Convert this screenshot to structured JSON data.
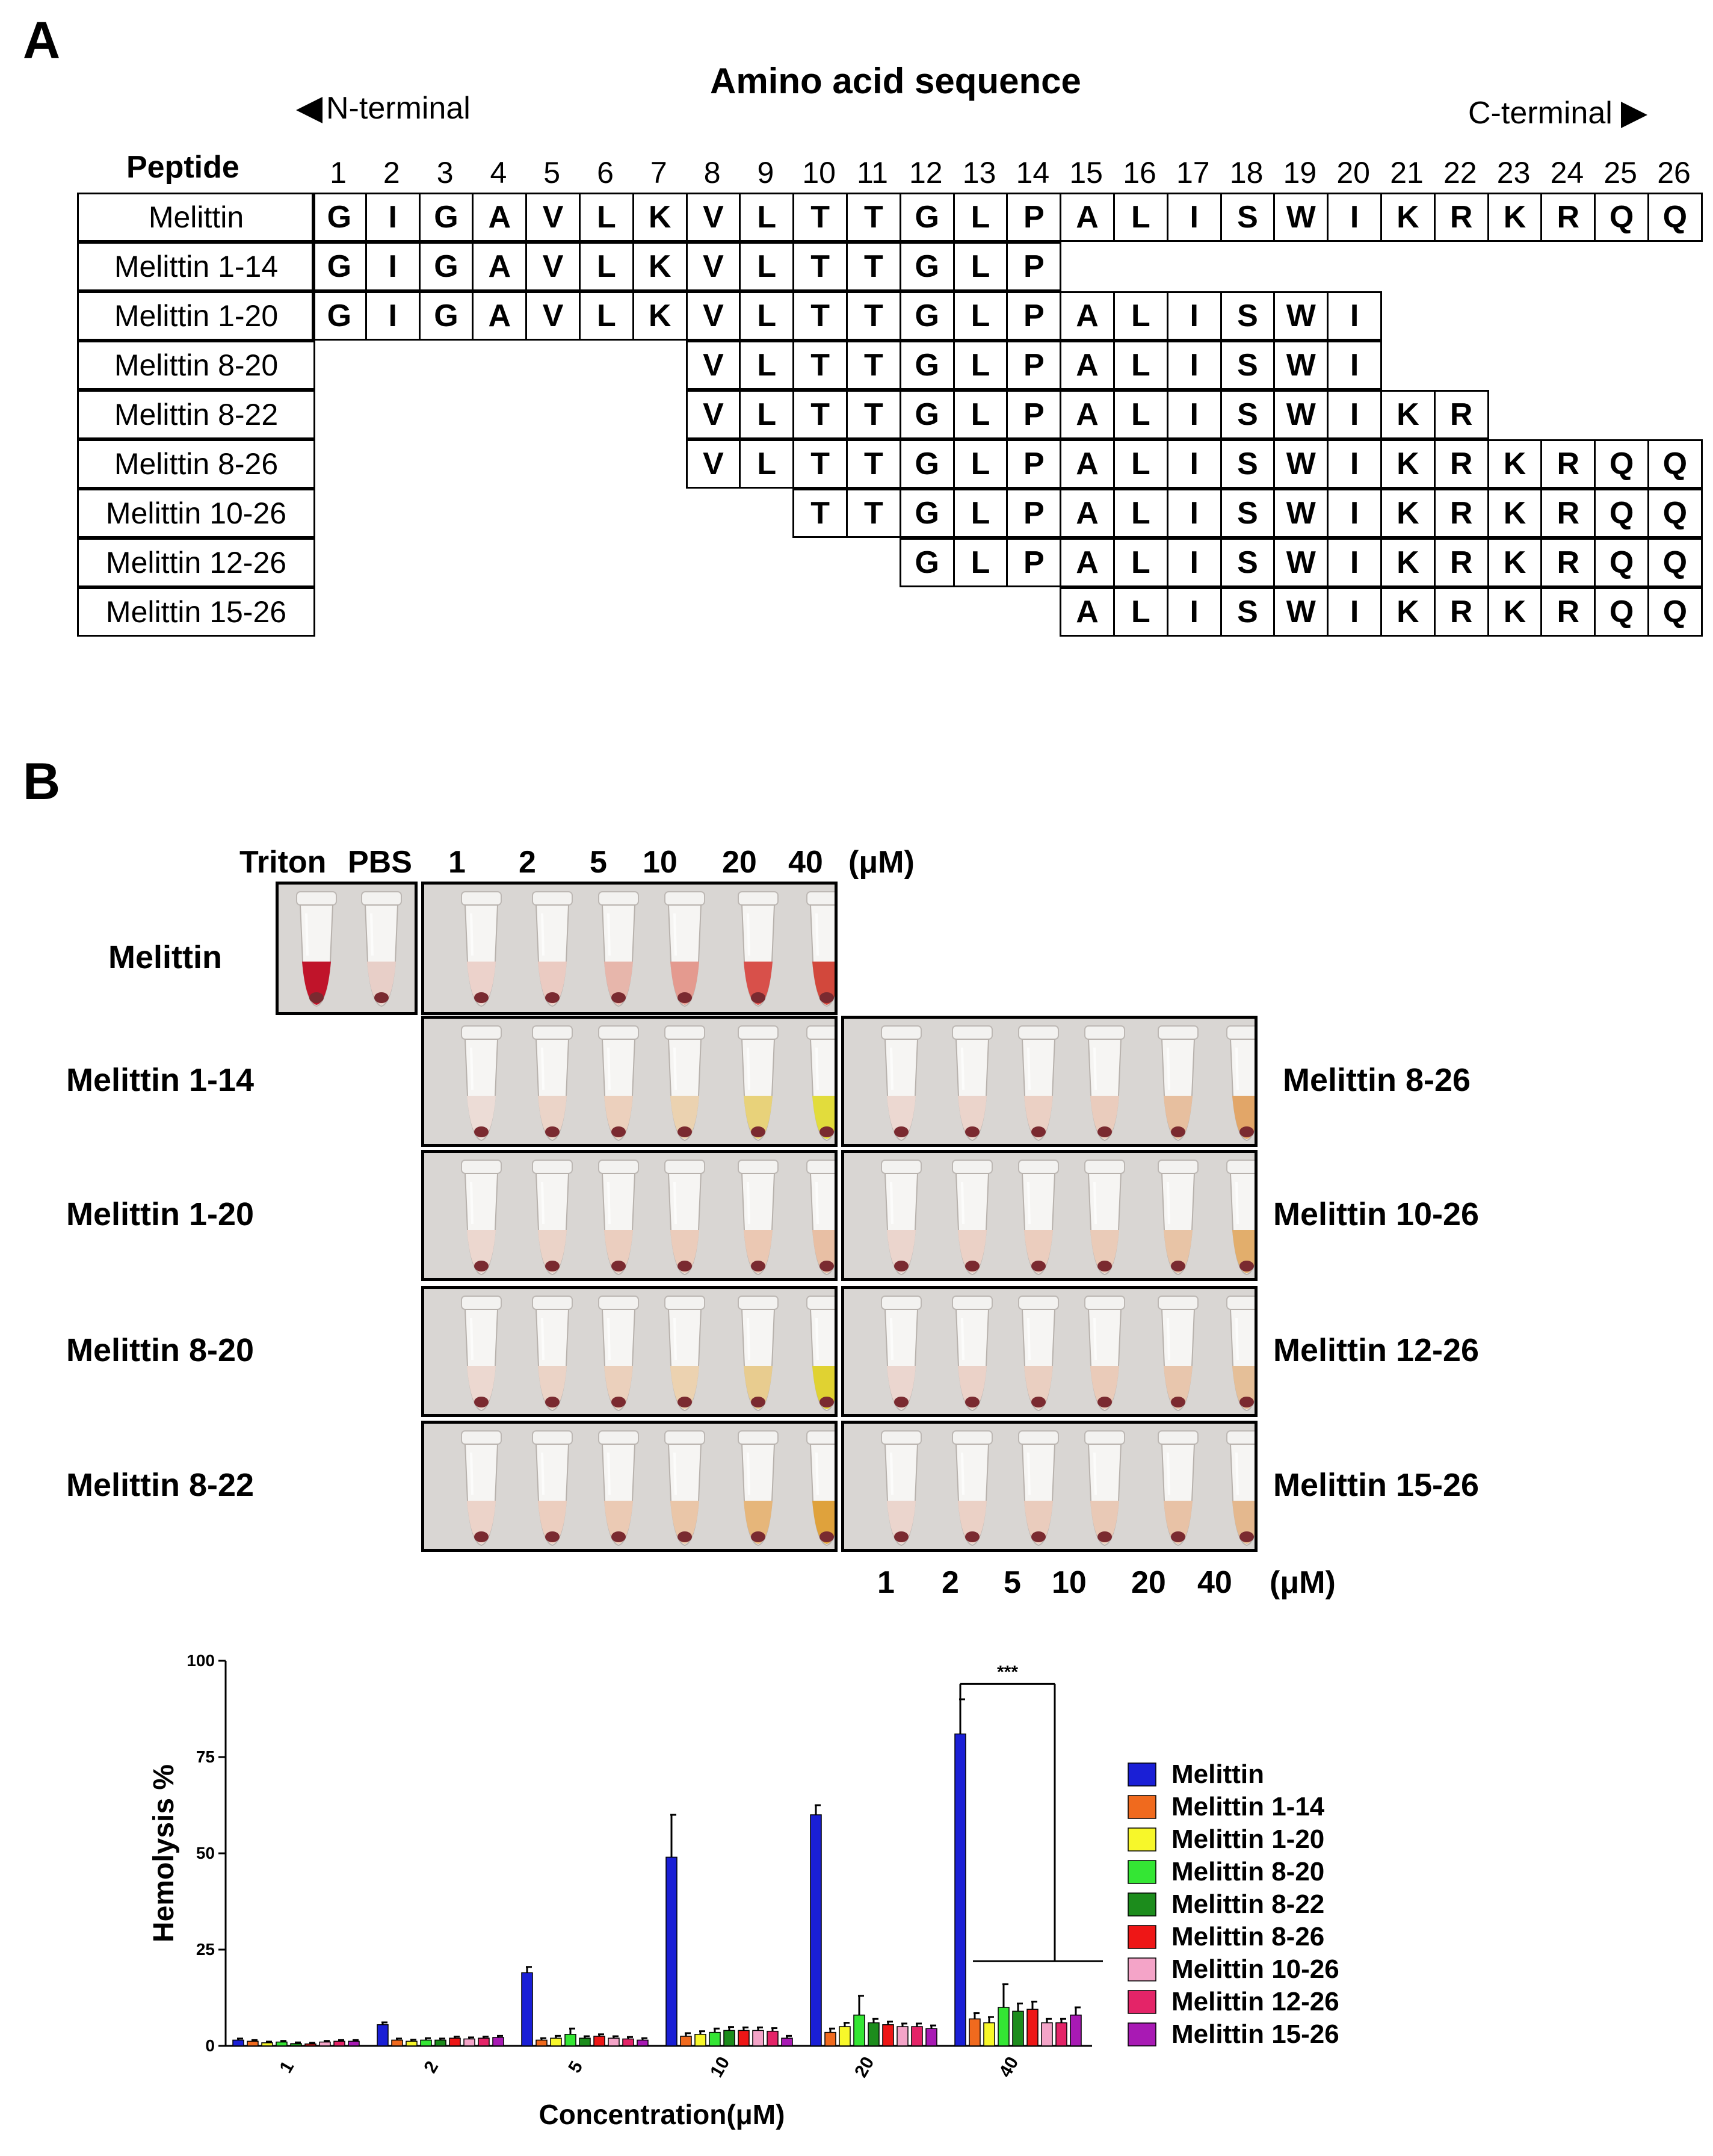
{
  "panel_a": {
    "label": "A",
    "title": "Amino acid sequence",
    "n_terminal": "N-terminal",
    "c_terminal": "C-terminal",
    "peptide_header": "Peptide",
    "positions": [
      "1",
      "2",
      "3",
      "4",
      "5",
      "6",
      "7",
      "8",
      "9",
      "10",
      "11",
      "12",
      "13",
      "14",
      "15",
      "16",
      "17",
      "18",
      "19",
      "20",
      "21",
      "22",
      "23",
      "24",
      "25",
      "26"
    ],
    "peptides": [
      {
        "name": "Melittin",
        "start": 1,
        "residues": [
          "G",
          "I",
          "G",
          "A",
          "V",
          "L",
          "K",
          "V",
          "L",
          "T",
          "T",
          "G",
          "L",
          "P",
          "A",
          "L",
          "I",
          "S",
          "W",
          "I",
          "K",
          "R",
          "K",
          "R",
          "Q",
          "Q"
        ]
      },
      {
        "name": "Melittin 1-14",
        "start": 1,
        "residues": [
          "G",
          "I",
          "G",
          "A",
          "V",
          "L",
          "K",
          "V",
          "L",
          "T",
          "T",
          "G",
          "L",
          "P"
        ]
      },
      {
        "name": "Melittin 1-20",
        "start": 1,
        "residues": [
          "G",
          "I",
          "G",
          "A",
          "V",
          "L",
          "K",
          "V",
          "L",
          "T",
          "T",
          "G",
          "L",
          "P",
          "A",
          "L",
          "I",
          "S",
          "W",
          "I"
        ]
      },
      {
        "name": "Melittin 8-20",
        "start": 8,
        "residues": [
          "V",
          "L",
          "T",
          "T",
          "G",
          "L",
          "P",
          "A",
          "L",
          "I",
          "S",
          "W",
          "I"
        ]
      },
      {
        "name": "Melittin 8-22",
        "start": 8,
        "residues": [
          "V",
          "L",
          "T",
          "T",
          "G",
          "L",
          "P",
          "A",
          "L",
          "I",
          "S",
          "W",
          "I",
          "K",
          "R"
        ]
      },
      {
        "name": "Melittin 8-26",
        "start": 8,
        "residues": [
          "V",
          "L",
          "T",
          "T",
          "G",
          "L",
          "P",
          "A",
          "L",
          "I",
          "S",
          "W",
          "I",
          "K",
          "R",
          "K",
          "R",
          "Q",
          "Q"
        ]
      },
      {
        "name": "Melittin 10-26",
        "start": 10,
        "residues": [
          "T",
          "T",
          "G",
          "L",
          "P",
          "A",
          "L",
          "I",
          "S",
          "W",
          "I",
          "K",
          "R",
          "K",
          "R",
          "Q",
          "Q"
        ]
      },
      {
        "name": "Melittin 12-26",
        "start": 12,
        "residues": [
          "G",
          "L",
          "P",
          "A",
          "L",
          "I",
          "S",
          "W",
          "I",
          "K",
          "R",
          "K",
          "R",
          "Q",
          "Q"
        ]
      },
      {
        "name": "Melittin 15-26",
        "start": 15,
        "residues": [
          "A",
          "L",
          "I",
          "S",
          "W",
          "I",
          "K",
          "R",
          "K",
          "R",
          "Q",
          "Q"
        ]
      }
    ]
  },
  "panel_b": {
    "label": "B",
    "top_header": {
      "triton": "Triton",
      "pbs": "PBS",
      "concs": [
        "1",
        "2",
        "5",
        "10",
        "20",
        "40"
      ],
      "unit": "(μM)"
    },
    "bottom_header": {
      "concs": [
        "1",
        "2",
        "5",
        "10",
        "20",
        "40"
      ],
      "unit": "(μM)"
    },
    "melittin_label": "Melittin",
    "control_colors": [
      "#c0142a",
      "#e8cfc8"
    ],
    "melittin_colors": [
      "#ecd2cb",
      "#ebcbc2",
      "#e7b6ab",
      "#e49a8f",
      "#d8504a",
      "#d2483c"
    ],
    "left_groups": [
      {
        "name": "Melittin 1-14",
        "colors": [
          "#ecdcd6",
          "#ebd4c8",
          "#ecd0bd",
          "#ebd2b0",
          "#e8d27a",
          "#e2dc3c"
        ]
      },
      {
        "name": "Melittin 1-20",
        "colors": [
          "#ecd7cf",
          "#ebd3c8",
          "#ebcebf",
          "#ebccbb",
          "#ebc8b3",
          "#e8bfa4"
        ]
      },
      {
        "name": "Melittin 8-20",
        "colors": [
          "#ecd8d0",
          "#ebd3c6",
          "#ebd0bc",
          "#ecd2b0",
          "#e8cc8f",
          "#e0d232"
        ]
      },
      {
        "name": "Melittin 8-22",
        "colors": [
          "#ecd3c9",
          "#eccebf",
          "#ebcab4",
          "#eac6a8",
          "#e6b67a",
          "#dfa23c"
        ]
      }
    ],
    "right_groups": [
      {
        "name": "Melittin 8-26",
        "colors": [
          "#ecd8d1",
          "#ebd4cb",
          "#ebd0c4",
          "#eaccbd",
          "#e7bf9f",
          "#e2a668"
        ]
      },
      {
        "name": "Melittin 10-26",
        "colors": [
          "#ebd5cd",
          "#ebd1c6",
          "#ebcdbe",
          "#eacbb8",
          "#e8c4a6",
          "#e2ae6c"
        ]
      },
      {
        "name": "Melittin 12-26",
        "colors": [
          "#ebd6cf",
          "#ebd2c8",
          "#eacfc1",
          "#eacbb9",
          "#e8c6ad",
          "#e5bf98"
        ]
      },
      {
        "name": "Melittin 15-26",
        "colors": [
          "#ebd5cd",
          "#ebd1c6",
          "#eaccbd",
          "#e9c9b6",
          "#e8c2a6",
          "#e4b88e"
        ]
      }
    ]
  },
  "chart_data": {
    "type": "bar",
    "title": "",
    "xlabel": "Concentration(μM)",
    "ylabel": "Hemolysis %",
    "ylim": [
      0,
      100
    ],
    "yticks": [
      "0",
      "25",
      "50",
      "75",
      "100"
    ],
    "categories": [
      "1",
      "2",
      "5",
      "10",
      "20",
      "40"
    ],
    "significance": "***",
    "legend_position": "right",
    "series": [
      {
        "name": "Melittin",
        "color": "#1a1fd6",
        "values": [
          1.5,
          5.5,
          19,
          49,
          60,
          81
        ],
        "errors": [
          0.4,
          0.6,
          1.5,
          11,
          2.5,
          9
        ]
      },
      {
        "name": "Melittin 1-14",
        "color": "#f06a1e",
        "values": [
          1.2,
          1.5,
          1.5,
          2.5,
          3.5,
          7
        ],
        "errors": [
          0.3,
          0.4,
          0.5,
          0.8,
          1.0,
          1.5
        ]
      },
      {
        "name": "Melittin 1-20",
        "color": "#f7f72a",
        "values": [
          0.8,
          1.2,
          2,
          3,
          5,
          6
        ],
        "errors": [
          0.3,
          0.4,
          0.6,
          0.8,
          1.0,
          1.5
        ]
      },
      {
        "name": "Melittin 8-20",
        "color": "#34e634",
        "values": [
          1,
          1.5,
          3,
          3.5,
          8,
          10
        ],
        "errors": [
          0.3,
          0.5,
          1.5,
          1.0,
          5.0,
          6.0
        ]
      },
      {
        "name": "Melittin 8-22",
        "color": "#1c8c1c",
        "values": [
          0.6,
          1.5,
          2,
          4,
          6,
          9
        ],
        "errors": [
          0.3,
          0.4,
          0.5,
          0.9,
          1.0,
          2.0
        ]
      },
      {
        "name": "Melittin 8-26",
        "color": "#ee1616",
        "values": [
          0.5,
          2,
          2.5,
          4,
          5.5,
          9.5
        ],
        "errors": [
          0.3,
          0.4,
          0.5,
          0.8,
          0.8,
          2.0
        ]
      },
      {
        "name": "Melittin 10-26",
        "color": "#f4a4c8",
        "values": [
          1,
          1.8,
          2,
          4,
          5,
          6
        ],
        "errors": [
          0.3,
          0.4,
          0.5,
          0.8,
          0.8,
          1.0
        ]
      },
      {
        "name": "Melittin 12-26",
        "color": "#e42468",
        "values": [
          1.2,
          2,
          1.8,
          3.8,
          5,
          6
        ],
        "errors": [
          0.3,
          0.4,
          0.5,
          0.8,
          0.8,
          1.0
        ]
      },
      {
        "name": "Melittin 15-26",
        "color": "#a81ab4",
        "values": [
          1.2,
          2.2,
          1.5,
          2,
          4.5,
          8
        ],
        "errors": [
          0.3,
          0.4,
          0.5,
          0.6,
          0.8,
          2.0
        ]
      }
    ]
  }
}
